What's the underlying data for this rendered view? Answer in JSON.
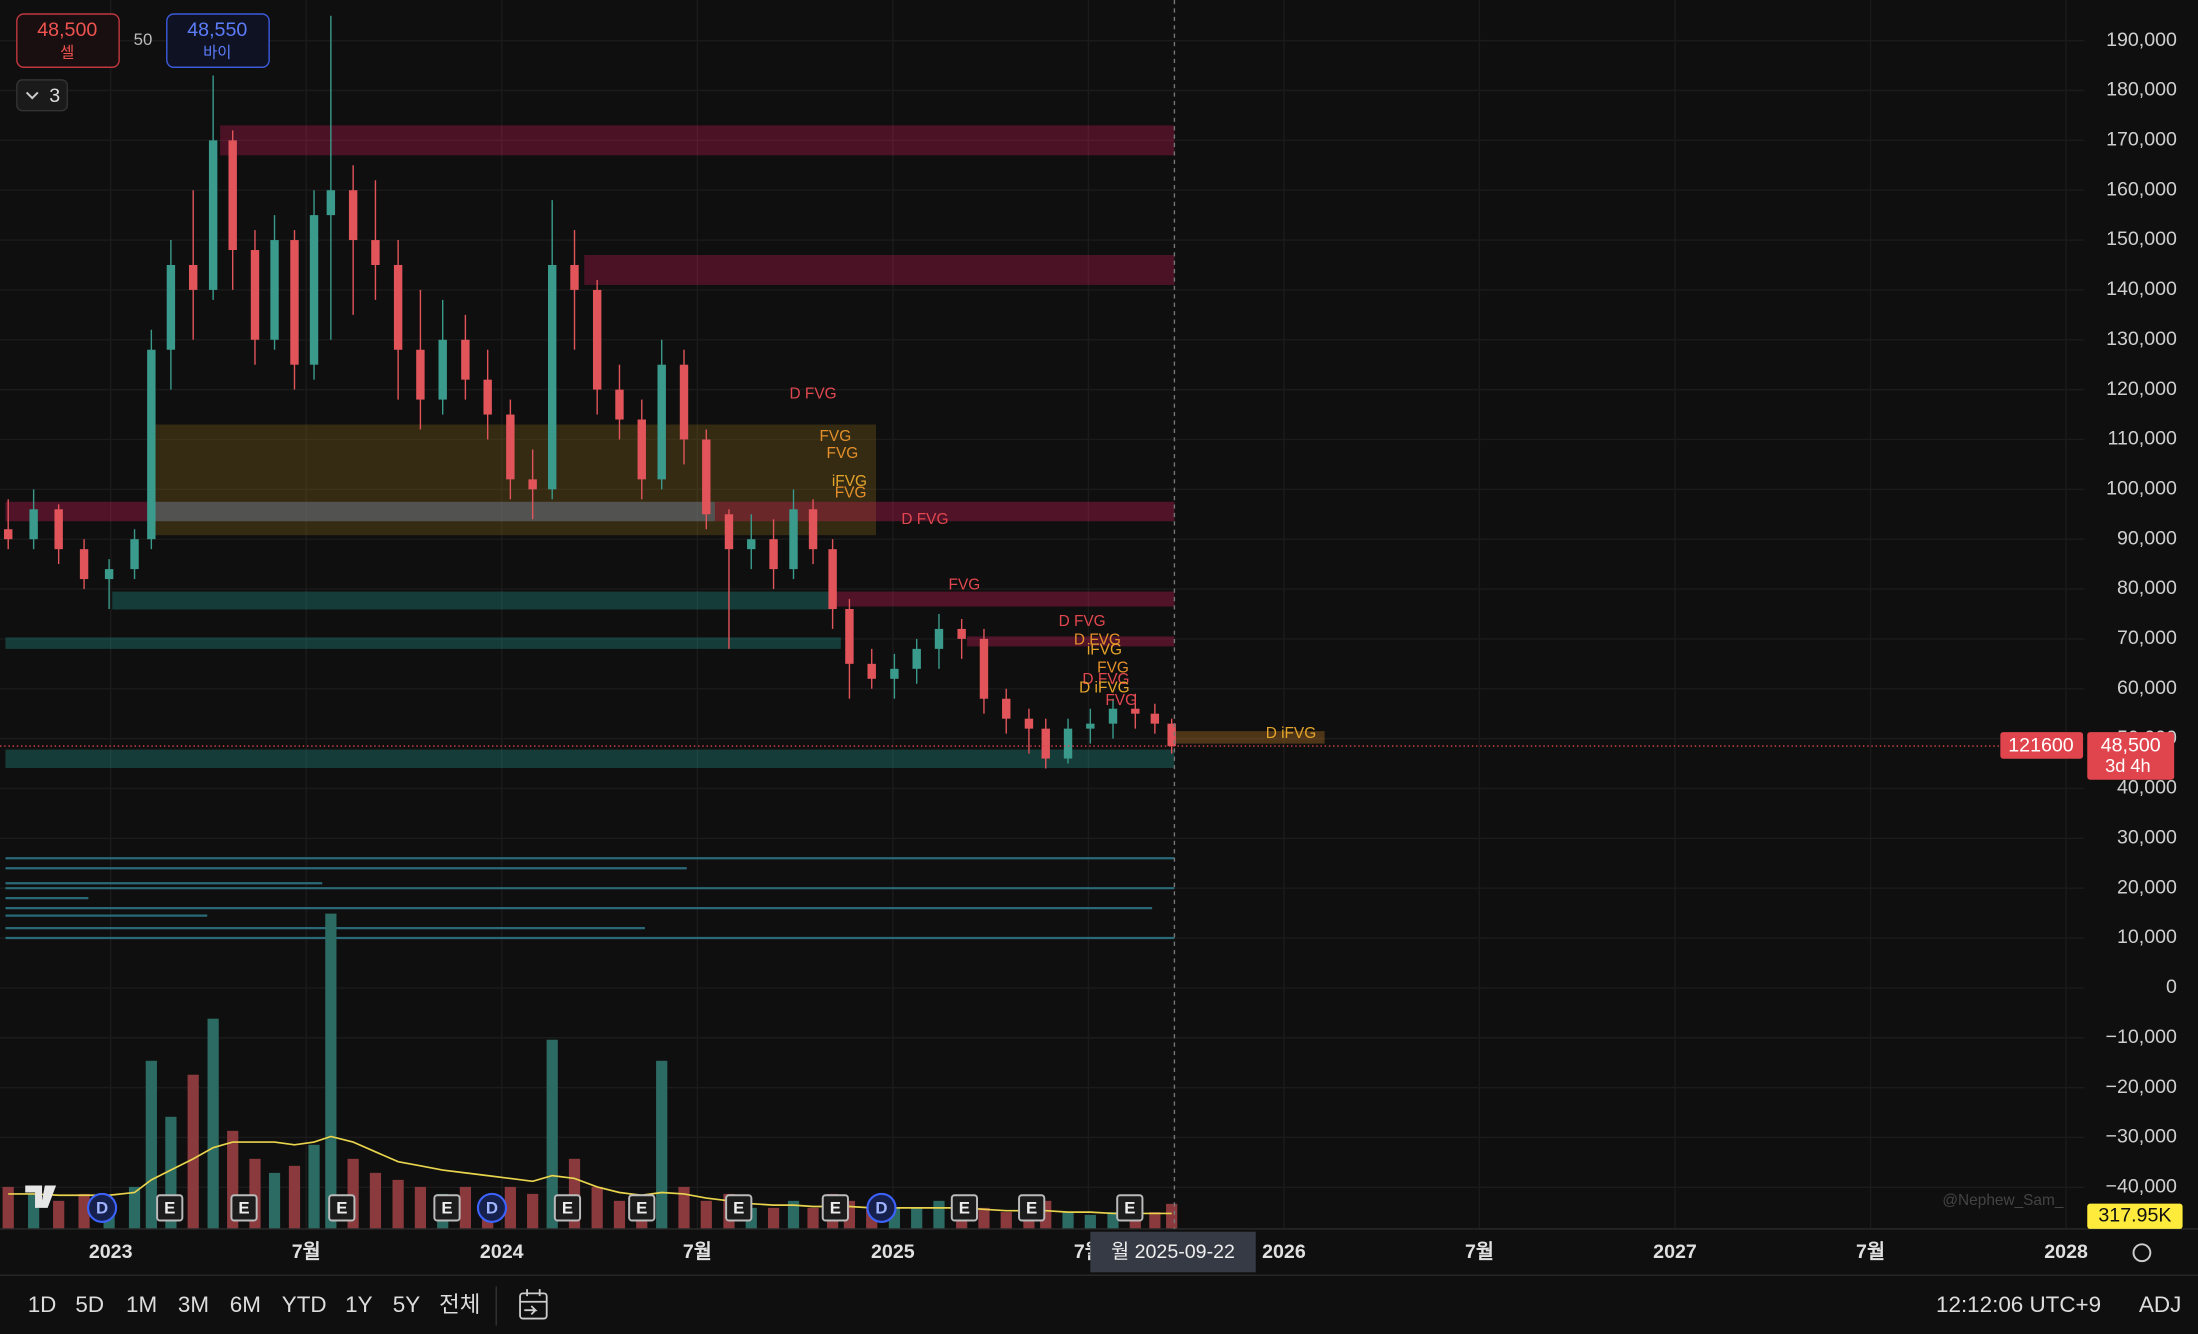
{
  "chart_data": {
    "type": "candlestick",
    "xlim": [
      2022.717,
      2028.047
    ],
    "ylim": [
      -48340,
      198150
    ],
    "yticks": [
      {
        "value": 190000,
        "label": "190,000"
      },
      {
        "value": 180000,
        "label": "180,000"
      },
      {
        "value": 170000,
        "label": "170,000"
      },
      {
        "value": 160000,
        "label": "160,000"
      },
      {
        "value": 150000,
        "label": "150,000"
      },
      {
        "value": 140000,
        "label": "140,000"
      },
      {
        "value": 130000,
        "label": "130,000"
      },
      {
        "value": 120000,
        "label": "120,000"
      },
      {
        "value": 110000,
        "label": "110,000"
      },
      {
        "value": 100000,
        "label": "100,000"
      },
      {
        "value": 90000,
        "label": "90,000"
      },
      {
        "value": 80000,
        "label": "80,000"
      },
      {
        "value": 70000,
        "label": "70,000"
      },
      {
        "value": 60000,
        "label": "60,000"
      },
      {
        "value": 50000,
        "label": "50,000"
      },
      {
        "value": 40000,
        "label": "40,000"
      },
      {
        "value": 30000,
        "label": "30,000"
      },
      {
        "value": 20000,
        "label": "20,000"
      },
      {
        "value": 10000,
        "label": "10,000"
      },
      0,
      {
        "value": -10000,
        "label": "−10,000"
      },
      {
        "value": -20000,
        "label": "−20,000"
      },
      {
        "value": -30000,
        "label": "−30,000"
      },
      {
        "value": -40000,
        "label": "−40,000"
      }
    ],
    "xticks": [
      {
        "value": 2023,
        "label": "2023"
      },
      {
        "value": 2023.5,
        "label": "7월"
      },
      {
        "value": 2024,
        "label": "2024"
      },
      {
        "value": 2024.5,
        "label": "7월"
      },
      {
        "value": 2025,
        "label": "2025"
      },
      {
        "value": 2025.5,
        "label": "7월"
      },
      {
        "value": 2026,
        "label": "2026"
      },
      {
        "value": 2026.5,
        "label": "7월"
      },
      {
        "value": 2027,
        "label": "2027"
      },
      {
        "value": 2027.5,
        "label": "7월"
      },
      {
        "value": 2028,
        "label": "2028"
      }
    ],
    "grid": true,
    "candles": {
      "up_color": "#3a9a8c",
      "down_color": "#e0545a",
      "x": [
        2022.738,
        2022.803,
        2022.867,
        2022.932,
        2022.996,
        2023.061,
        2023.104,
        2023.154,
        2023.211,
        2023.262,
        2023.312,
        2023.369,
        2023.419,
        2023.47,
        2023.52,
        2023.563,
        2023.62,
        2023.677,
        2023.735,
        2023.792,
        2023.849,
        2023.907,
        2023.964,
        2024.022,
        2024.079,
        2024.129,
        2024.186,
        2024.244,
        2024.301,
        2024.358,
        2024.409,
        2024.466,
        2024.523,
        2024.581,
        2024.638,
        2024.695,
        2024.746,
        2024.796,
        2024.846,
        2024.889,
        2024.946,
        2025.004,
        2025.061,
        2025.118,
        2025.176,
        2025.233,
        2025.29,
        2025.348,
        2025.391,
        2025.448,
        2025.505,
        2025.563,
        2025.62,
        2025.67,
        2025.713
      ],
      "open": [
        92000,
        90000,
        96000,
        88000,
        82000,
        84000,
        90000,
        128000,
        145000,
        140000,
        170000,
        148000,
        130000,
        150000,
        125000,
        155000,
        160000,
        150000,
        145000,
        128000,
        118000,
        130000,
        122000,
        115000,
        102000,
        100000,
        145000,
        140000,
        120000,
        114000,
        102000,
        125000,
        110000,
        95000,
        88000,
        90000,
        84000,
        96000,
        88000,
        76000,
        65000,
        62000,
        64000,
        68000,
        72000,
        70000,
        58000,
        54000,
        52000,
        46000,
        52000,
        53000,
        56000,
        55000,
        53000
      ],
      "high": [
        98000,
        100000,
        97000,
        90000,
        86000,
        92000,
        132000,
        150000,
        160000,
        183000,
        172000,
        152000,
        155000,
        152000,
        160000,
        195000,
        165000,
        162000,
        150000,
        140000,
        138000,
        135000,
        128000,
        118000,
        108000,
        158000,
        152000,
        142000,
        125000,
        118000,
        130000,
        128000,
        112000,
        96000,
        95000,
        94000,
        100000,
        98000,
        90000,
        78000,
        68000,
        67000,
        70000,
        75000,
        74000,
        72000,
        60000,
        56000,
        54000,
        54000,
        56000,
        58000,
        59000,
        57000,
        54000
      ],
      "low": [
        88000,
        88000,
        85000,
        80000,
        76000,
        82000,
        88000,
        120000,
        130000,
        138000,
        140000,
        125000,
        128000,
        120000,
        122000,
        130000,
        135000,
        138000,
        118000,
        112000,
        115000,
        118000,
        110000,
        98000,
        94000,
        98000,
        128000,
        115000,
        110000,
        98000,
        100000,
        105000,
        92000,
        68000,
        84000,
        80000,
        82000,
        85000,
        72000,
        58000,
        60000,
        58000,
        61000,
        64000,
        66000,
        55000,
        51000,
        47000,
        44000,
        45000,
        49000,
        50000,
        52000,
        51000,
        47000
      ],
      "close": [
        90000,
        96000,
        88000,
        82000,
        84000,
        90000,
        128000,
        145000,
        140000,
        170000,
        148000,
        130000,
        150000,
        125000,
        155000,
        160000,
        150000,
        145000,
        128000,
        118000,
        130000,
        122000,
        115000,
        102000,
        100000,
        145000,
        140000,
        120000,
        114000,
        102000,
        125000,
        110000,
        95000,
        88000,
        90000,
        84000,
        96000,
        88000,
        76000,
        65000,
        62000,
        64000,
        68000,
        72000,
        70000,
        58000,
        54000,
        52000,
        46000,
        52000,
        53000,
        56000,
        55000,
        53000,
        48500
      ]
    },
    "volume": {
      "vlim": [
        0,
        4000000
      ],
      "up_color": "#2b6b63",
      "down_color": "#8a3a3d",
      "ma_color": "#e8d44d",
      "values": [
        533000,
        444000,
        356000,
        444000,
        356000,
        533000,
        2133000,
        1422000,
        1956000,
        2667000,
        1244000,
        889000,
        711000,
        800000,
        1067000,
        4000000,
        889000,
        711000,
        622000,
        533000,
        444000,
        533000,
        356000,
        533000,
        444000,
        2400000,
        889000,
        533000,
        356000,
        356000,
        2133000,
        533000,
        356000,
        444000,
        267000,
        267000,
        356000,
        267000,
        444000,
        356000,
        267000,
        267000,
        267000,
        356000,
        267000,
        267000,
        213000,
        213000,
        356000,
        213000,
        178000,
        213000,
        213000,
        213000,
        317950
      ],
      "ma": [
        444000,
        444000,
        427000,
        427000,
        427000,
        462000,
        622000,
        747000,
        889000,
        1031000,
        1102000,
        1102000,
        1102000,
        1067000,
        1102000,
        1173000,
        1102000,
        978000,
        853000,
        800000,
        747000,
        711000,
        676000,
        640000,
        604000,
        676000,
        640000,
        533000,
        462000,
        427000,
        462000,
        444000,
        391000,
        356000,
        320000,
        302000,
        302000,
        284000,
        284000,
        284000,
        267000,
        267000,
        267000,
        267000,
        267000,
        249000,
        231000,
        231000,
        231000,
        213000,
        213000,
        196000,
        196000,
        196000,
        196000
      ],
      "last_label": {
        "value": 317950,
        "label": "317.95K"
      }
    },
    "zones": [
      {
        "x": [
          2023.28,
          2025.72
        ],
        "y": [
          167000,
          173000
        ],
        "color": "#e91e63",
        "opacity": 0.28
      },
      {
        "x": [
          2024.211,
          2025.72
        ],
        "y": [
          141000,
          147000
        ],
        "color": "#e91e63",
        "opacity": 0.28
      },
      {
        "x": [
          2023.104,
          2024.957
        ],
        "y": [
          90800,
          113000
        ],
        "color": "#8a6d1a",
        "opacity": 0.3
      },
      {
        "x": [
          2022.731,
          2025.72
        ],
        "y": [
          93600,
          97500
        ],
        "color": "#e91e63",
        "opacity": 0.3
      },
      {
        "x": [
          2023.104,
          2024.545
        ],
        "y": [
          93600,
          97500
        ],
        "color": "#26a69a",
        "opacity": 0.35
      },
      {
        "x": [
          2023.004,
          2024.849
        ],
        "y": [
          75900,
          79500
        ],
        "color": "#26a69a",
        "opacity": 0.3
      },
      {
        "x": [
          2022.731,
          2024.867
        ],
        "y": [
          68000,
          70300
        ],
        "color": "#26a69a",
        "opacity": 0.3
      },
      {
        "x": [
          2024.849,
          2025.72
        ],
        "y": [
          76500,
          79500
        ],
        "color": "#e91e63",
        "opacity": 0.3
      },
      {
        "x": [
          2025.19,
          2025.72
        ],
        "y": [
          68500,
          70500
        ],
        "color": "#e91e63",
        "opacity": 0.3
      },
      {
        "x": [
          2022.731,
          2025.72
        ],
        "y": [
          44100,
          47800
        ],
        "color": "#26a69a",
        "opacity": 0.3
      },
      {
        "x": [
          2025.713,
          2026.104
        ],
        "y": [
          49000,
          51500
        ],
        "color": "#e5902a",
        "opacity": 0.3
      }
    ],
    "levels": [
      {
        "value": 26000,
        "x": [
          2022.731,
          2025.72
        ],
        "color": "#2a6a78"
      },
      {
        "value": 24000,
        "x": [
          2022.731,
          2024.473
        ],
        "color": "#2a6a78"
      },
      {
        "value": 21000,
        "x": [
          2022.731,
          2023.541
        ],
        "color": "#2a6a78"
      },
      {
        "value": 20000,
        "x": [
          2022.731,
          2025.72
        ],
        "color": "#2a6a78"
      },
      {
        "value": 18000,
        "x": [
          2022.731,
          2022.943
        ],
        "color": "#2a6a78"
      },
      {
        "value": 16000,
        "x": [
          2022.731,
          2025.663
        ],
        "color": "#2a6a78"
      },
      {
        "value": 14500,
        "x": [
          2022.731,
          2023.247
        ],
        "color": "#2a6a78"
      },
      {
        "value": 12000,
        "x": [
          2022.731,
          2024.366
        ],
        "color": "#2a6a78"
      },
      {
        "value": 10000,
        "x": [
          2022.731,
          2025.72
        ],
        "color": "#2a6a78"
      }
    ],
    "annotations": [
      {
        "text": "D FVG",
        "x": 2024.796,
        "y": 119000,
        "color": "#e2474f"
      },
      {
        "text": "FVG",
        "x": 2024.853,
        "y": 110500,
        "color": "#e5902a"
      },
      {
        "text": "FVG",
        "x": 2024.871,
        "y": 107100,
        "color": "#e5902a"
      },
      {
        "text": "iFVG",
        "x": 2024.889,
        "y": 101500,
        "color": "#e5a52a"
      },
      {
        "text": "FVG",
        "x": 2024.892,
        "y": 99200,
        "color": "#e5902a"
      },
      {
        "text": "D FVG",
        "x": 2025.082,
        "y": 93900,
        "color": "#e2474f"
      },
      {
        "text": "FVG",
        "x": 2025.183,
        "y": 80700,
        "color": "#e2474f"
      },
      {
        "text": "D FVG",
        "x": 2025.484,
        "y": 73400,
        "color": "#e2474f"
      },
      {
        "text": "D FVG",
        "x": 2025.523,
        "y": 69700,
        "color": "#e5902a"
      },
      {
        "text": "iFVG",
        "x": 2025.541,
        "y": 67700,
        "color": "#e5a52a"
      },
      {
        "text": "FVG",
        "x": 2025.563,
        "y": 64100,
        "color": "#e5902a"
      },
      {
        "text": "D FVG",
        "x": 2025.545,
        "y": 61800,
        "color": "#e2474f"
      },
      {
        "text": "D iFVG",
        "x": 2025.541,
        "y": 60100,
        "color": "#e5a52a"
      },
      {
        "text": "FVG",
        "x": 2025.584,
        "y": 57600,
        "color": "#e2474f"
      },
      {
        "text": "D iFVG",
        "x": 2026.018,
        "y": 50900,
        "color": "#e5a52a"
      }
    ],
    "events": [
      {
        "label": "D",
        "x": 2022.978
      },
      {
        "label": "E",
        "x": 2023.151
      },
      {
        "label": "E",
        "x": 2023.341
      },
      {
        "label": "E",
        "x": 2023.591
      },
      {
        "label": "E",
        "x": 2023.86
      },
      {
        "label": "D",
        "x": 2023.975
      },
      {
        "label": "E",
        "x": 2024.168
      },
      {
        "label": "E",
        "x": 2024.358
      },
      {
        "label": "E",
        "x": 2024.606
      },
      {
        "label": "E",
        "x": 2024.853
      },
      {
        "label": "D",
        "x": 2024.971
      },
      {
        "label": "E",
        "x": 2025.183
      },
      {
        "label": "E",
        "x": 2025.355
      },
      {
        "label": "E",
        "x": 2025.606
      }
    ],
    "last_price": {
      "value": 48500,
      "label": "48,500",
      "countdown": "3d 4h",
      "tag": "121600",
      "color": "#e0454e"
    },
    "crosshair": {
      "x": 2025.72,
      "label": "월 2025-09-22"
    },
    "watermark": "@Nephew_Sam_"
  },
  "order_panel": {
    "sell_price": "48,500",
    "sell_label": "셀",
    "quantity": "50",
    "buy_price": "48,550",
    "buy_label": "바이",
    "layers": "3"
  },
  "toolbar": {
    "timeframes": [
      "1D",
      "5D",
      "1M",
      "3M",
      "6M",
      "YTD",
      "1Y",
      "5Y",
      "전체"
    ],
    "clock": "12:12:06 UTC+9",
    "adj": "ADJ"
  }
}
